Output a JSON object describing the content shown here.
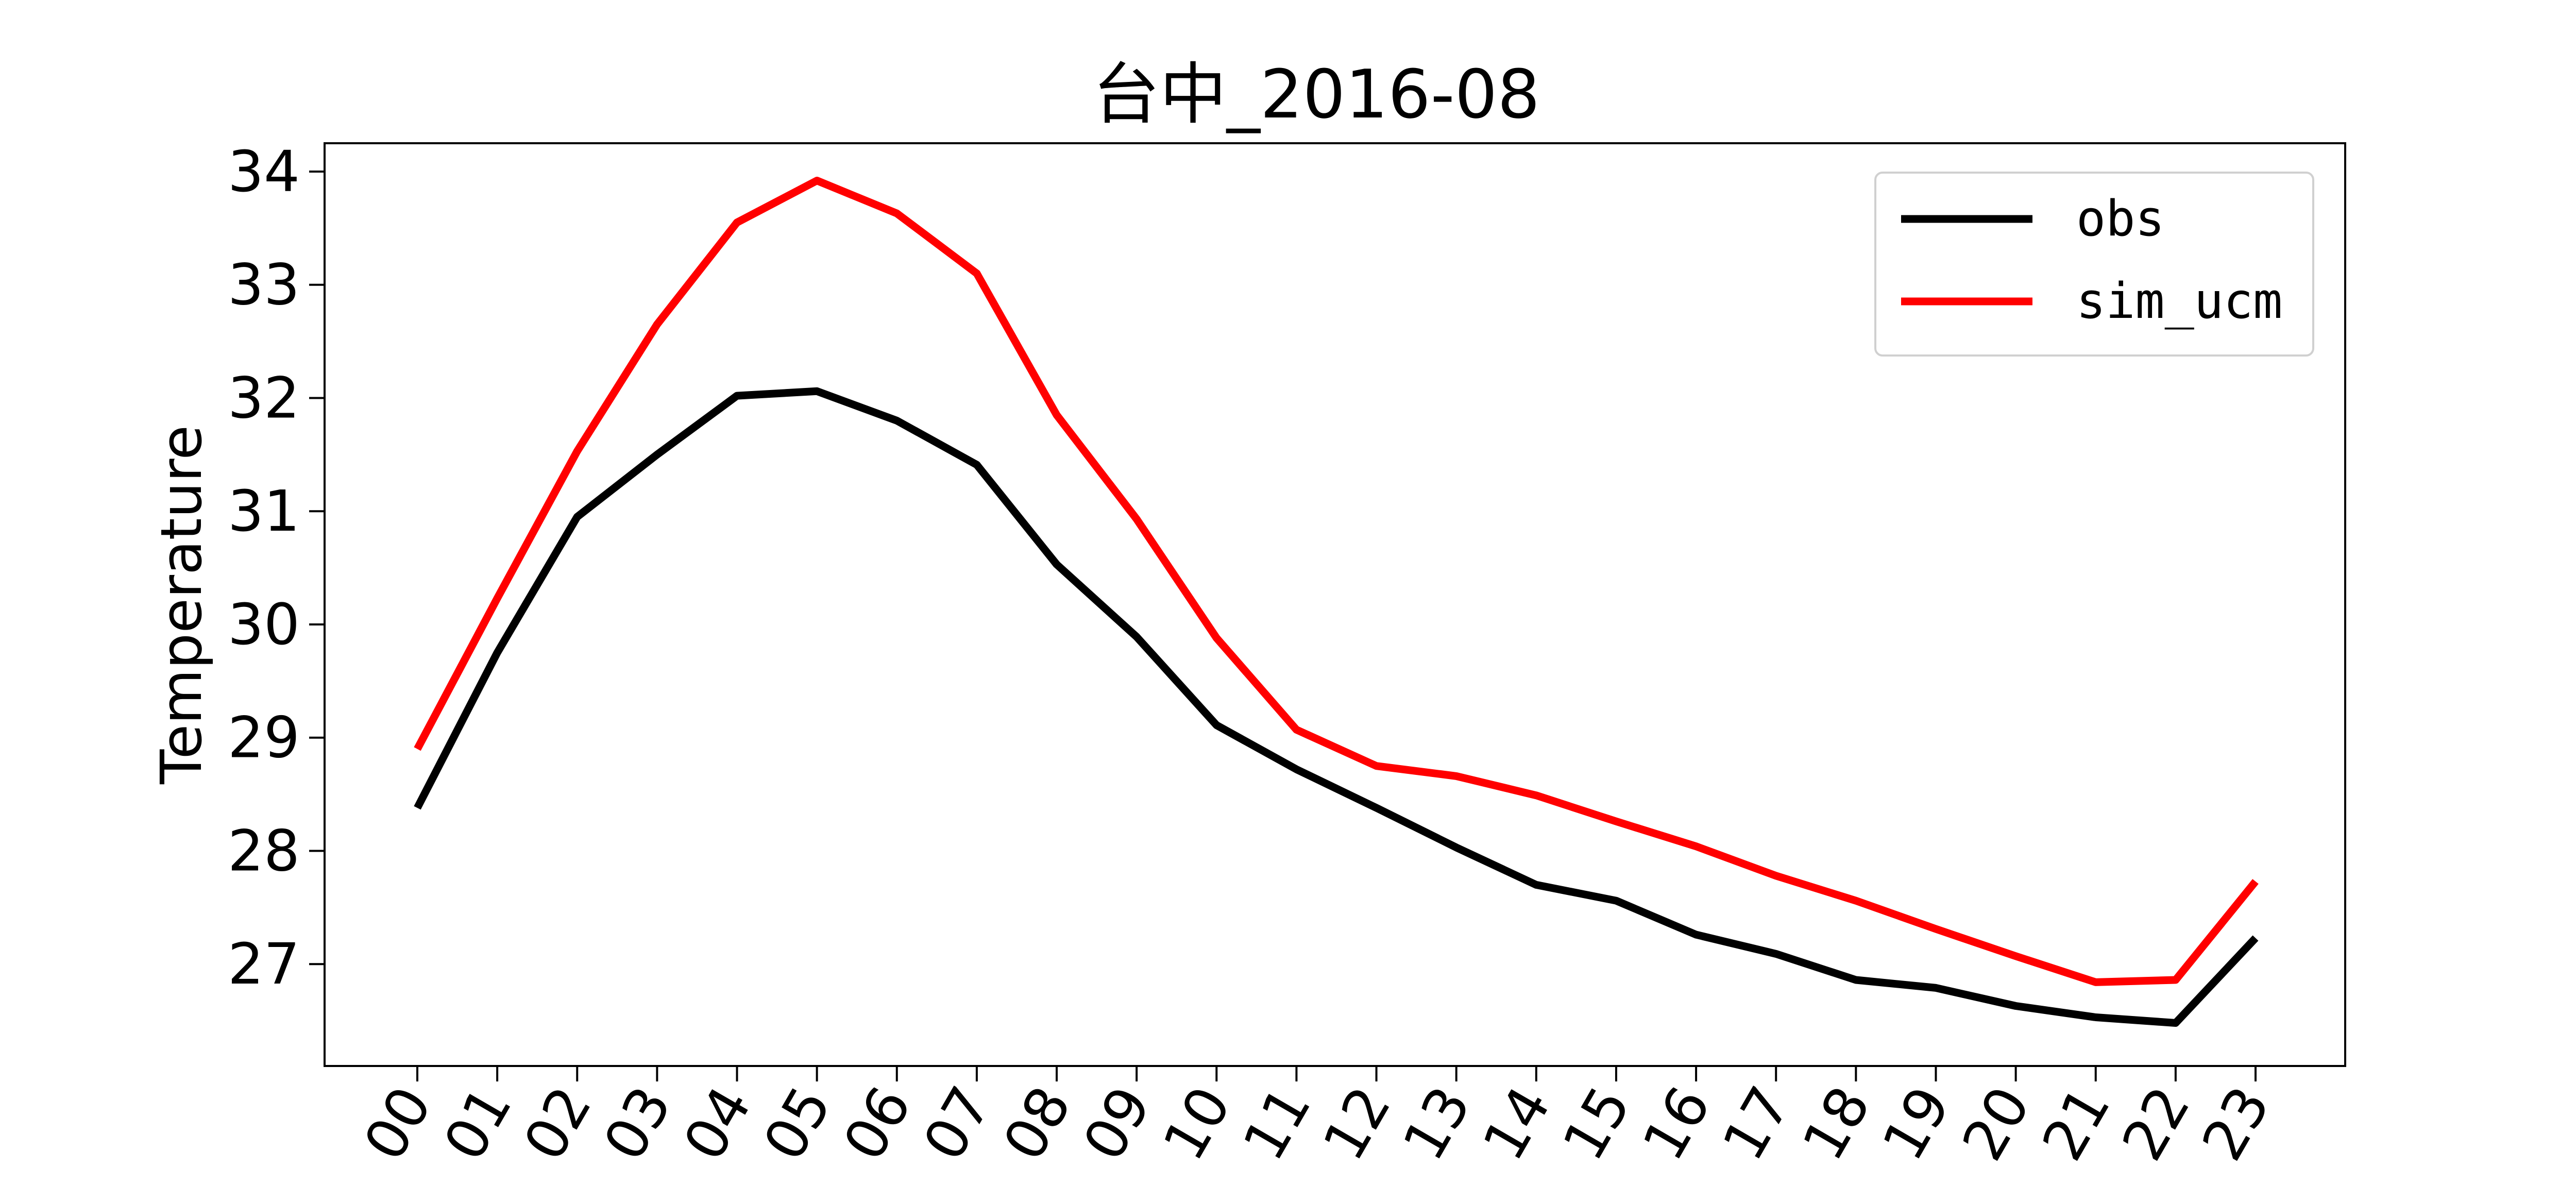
{
  "chart_data": {
    "type": "line",
    "title": "台中_2016-08",
    "xlabel": "",
    "ylabel": "Temperature",
    "categories": [
      "00",
      "01",
      "02",
      "03",
      "04",
      "05",
      "06",
      "07",
      "08",
      "09",
      "10",
      "11",
      "12",
      "13",
      "14",
      "15",
      "16",
      "17",
      "18",
      "19",
      "20",
      "21",
      "22",
      "23"
    ],
    "yticks": [
      27,
      28,
      29,
      30,
      31,
      32,
      33,
      34
    ],
    "ylim": [
      26.1,
      34.25
    ],
    "grid": false,
    "legend_position": "top-right",
    "series": [
      {
        "name": "obs",
        "color": "#000000",
        "values": [
          28.38,
          29.75,
          30.95,
          31.5,
          32.02,
          32.06,
          31.8,
          31.41,
          30.53,
          29.89,
          29.11,
          28.72,
          28.38,
          28.03,
          27.7,
          27.56,
          27.26,
          27.09,
          26.86,
          26.79,
          26.63,
          26.53,
          26.48,
          27.23
        ]
      },
      {
        "name": "sim_ucm",
        "color": "#ff0000",
        "values": [
          28.9,
          30.23,
          31.53,
          32.65,
          33.55,
          33.92,
          33.63,
          33.1,
          31.85,
          30.93,
          29.88,
          29.07,
          28.75,
          28.66,
          28.49,
          28.26,
          28.04,
          27.78,
          27.56,
          27.31,
          27.07,
          26.84,
          26.86,
          27.73
        ]
      }
    ]
  }
}
